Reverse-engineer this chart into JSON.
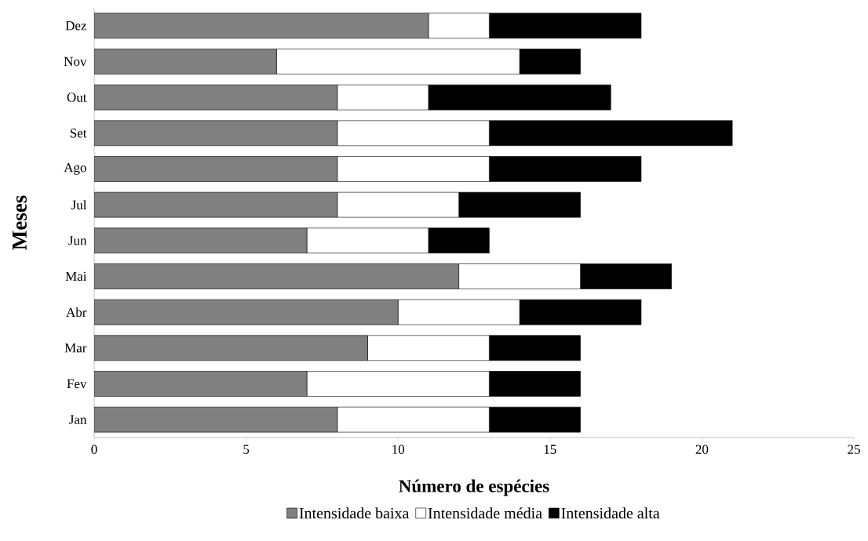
{
  "chart_data": {
    "type": "bar",
    "orientation": "horizontal",
    "stacked": true,
    "xlabel": "Número de espécies",
    "ylabel": "Meses",
    "categories": [
      "Dez",
      "Nov",
      "Out",
      "Set",
      "Ago",
      "Jul",
      "Jun",
      "Mai",
      "Abr",
      "Mar",
      "Fev",
      "Jan"
    ],
    "series": [
      {
        "name": "Intensidade baixa",
        "color": "#808080",
        "values": [
          11,
          6,
          8,
          8,
          8,
          8,
          7,
          12,
          10,
          9,
          7,
          8
        ]
      },
      {
        "name": "Intensidade média",
        "color": "#ffffff",
        "values": [
          2,
          8,
          3,
          5,
          5,
          4,
          4,
          4,
          4,
          4,
          6,
          5
        ]
      },
      {
        "name": "Intensidade alta",
        "color": "#000000",
        "values": [
          5,
          2,
          6,
          8,
          5,
          4,
          2,
          3,
          4,
          3,
          3,
          3
        ]
      }
    ],
    "xlim": [
      0,
      25
    ],
    "xticks": [
      0,
      5,
      10,
      15,
      20,
      25
    ],
    "legend": "bottom"
  }
}
